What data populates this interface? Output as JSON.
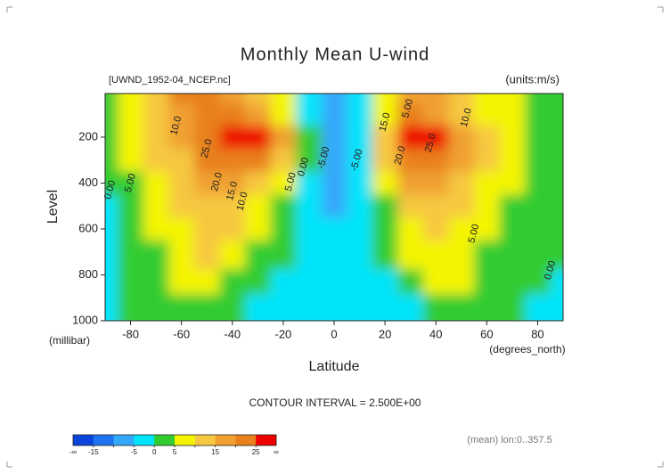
{
  "chart_data": {
    "type": "contour",
    "title": "Monthly Mean U-wind",
    "subtitle": "[UWND_1952-04_NCEP.nc]",
    "units": "(units:m/s)",
    "x_label": "Latitude",
    "x_units": "(degrees_north)",
    "y_label": "Level",
    "y_units": "(millibar)",
    "footer": "CONTOUR INTERVAL = 2.500E+00",
    "note": "(mean) lon:0..357.5",
    "x": [
      -90,
      -80,
      -70,
      -60,
      -50,
      -40,
      -30,
      -20,
      -10,
      0,
      10,
      20,
      30,
      40,
      50,
      60,
      70,
      80,
      90
    ],
    "levels": [
      10,
      100,
      200,
      300,
      400,
      500,
      600,
      700,
      850,
      1000
    ],
    "z": [
      [
        3,
        5,
        12,
        22,
        22,
        18,
        12,
        5,
        -2,
        -10,
        -5,
        5,
        15,
        15,
        10,
        8,
        5,
        3,
        2
      ],
      [
        2,
        8,
        14,
        18,
        20,
        20,
        16,
        8,
        -2,
        -8,
        -5,
        8,
        20,
        18,
        12,
        8,
        5,
        3,
        2
      ],
      [
        2,
        6,
        12,
        16,
        24,
        28,
        27,
        15,
        1,
        -6,
        -3,
        14,
        28,
        26,
        16,
        10,
        6,
        4,
        2
      ],
      [
        1,
        5,
        10,
        14,
        20,
        24,
        20,
        10,
        0,
        -6,
        -2,
        10,
        22,
        23,
        17,
        10,
        6,
        4,
        2
      ],
      [
        0,
        4,
        8,
        12,
        17,
        17,
        14,
        5,
        -1,
        -6,
        -2,
        6,
        17,
        18,
        14,
        8,
        5,
        3,
        2
      ],
      [
        -1,
        3,
        6,
        10,
        14,
        13,
        9,
        3,
        -1,
        -6,
        -3,
        3,
        12,
        14,
        11,
        7,
        4,
        2,
        1
      ],
      [
        -1,
        2,
        5,
        9,
        12,
        10,
        6,
        1,
        -1,
        -5,
        -3,
        1,
        8,
        11,
        9,
        5,
        3,
        1,
        0
      ],
      [
        -1,
        2,
        4,
        8,
        10,
        8,
        3,
        0,
        -2,
        -5,
        -3,
        0,
        5,
        8,
        7,
        4,
        2,
        1,
        0
      ],
      [
        -1,
        1,
        3,
        6,
        7,
        4,
        1,
        -1,
        -3,
        -5,
        -3,
        -1,
        2,
        5,
        5,
        3,
        1,
        0,
        -1
      ],
      [
        -1,
        0,
        2,
        4,
        4,
        1,
        -1,
        -3,
        -4,
        -5,
        -3,
        -2,
        -1,
        2,
        3,
        2,
        0,
        -1,
        -1
      ]
    ],
    "xlim": [
      -90,
      90
    ],
    "ylim": [
      1000,
      10
    ],
    "xticks": [
      -80,
      -60,
      -40,
      -20,
      0,
      20,
      40,
      60,
      80
    ],
    "yticks": [
      200,
      400,
      600,
      800,
      1000
    ],
    "color_levels": [
      -15,
      -10,
      -5,
      0,
      5,
      10,
      15,
      20,
      25
    ],
    "colors": [
      "#0a44dc",
      "#1e74f0",
      "#34a8fa",
      "#00e4fa",
      "#30cc30",
      "#f4f400",
      "#f6c840",
      "#f0a030",
      "#e8801c",
      "#ee0000"
    ],
    "colorbar_ticks": [
      -15,
      -5,
      0,
      5,
      15,
      25
    ],
    "colorbar_min_label": "-∞",
    "colorbar_max_label": "∞",
    "contour_labels": [
      {
        "text": "10.0",
        "lat": -62,
        "level": 150
      },
      {
        "text": "5.00",
        "lat": -80,
        "level": 400
      },
      {
        "text": "0.00",
        "lat": -88,
        "level": 430
      },
      {
        "text": "25.0",
        "lat": -50,
        "level": 250
      },
      {
        "text": "20.0",
        "lat": -46,
        "level": 395
      },
      {
        "text": "15.0",
        "lat": -40,
        "level": 435
      },
      {
        "text": "10.0",
        "lat": -36,
        "level": 480
      },
      {
        "text": "5.00",
        "lat": -17,
        "level": 395
      },
      {
        "text": "0.00",
        "lat": -12,
        "level": 330
      },
      {
        "text": "-5.00",
        "lat": -4,
        "level": 290
      },
      {
        "text": "-5.00",
        "lat": 9,
        "level": 300
      },
      {
        "text": "15.0",
        "lat": 20,
        "level": 135
      },
      {
        "text": "5.00",
        "lat": 29,
        "level": 75
      },
      {
        "text": "10.0",
        "lat": 52,
        "level": 115
      },
      {
        "text": "25.0",
        "lat": 38,
        "level": 225
      },
      {
        "text": "20.0",
        "lat": 26,
        "level": 280
      },
      {
        "text": "5.00",
        "lat": 55,
        "level": 620
      },
      {
        "text": "0.00",
        "lat": 85,
        "level": 780
      }
    ]
  }
}
